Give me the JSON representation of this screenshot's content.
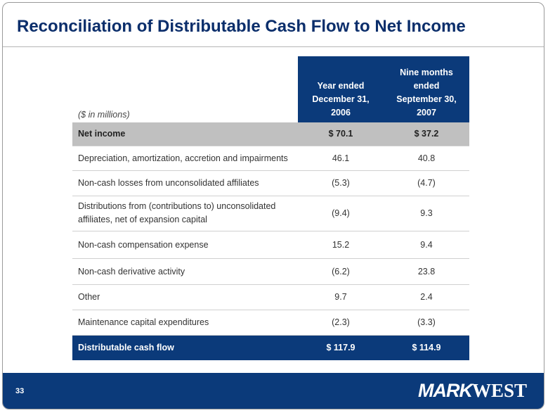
{
  "header": {
    "title": "Reconciliation of Distributable Cash Flow to Net Income"
  },
  "table": {
    "unit_note": "($ in millions)",
    "columns": [
      [
        "Year ended",
        "December 31,",
        "2006"
      ],
      [
        "Nine months",
        "ended",
        "September 30,",
        "2007"
      ]
    ],
    "rows": [
      [
        [
          "Net income"
        ],
        "$  70.1",
        "$  37.2"
      ],
      [
        [
          "Depreciation, amortization, accretion and impairments"
        ],
        "46.1",
        "40.8"
      ],
      [
        [
          "Non-cash losses from unconsolidated affiliates"
        ],
        "(5.3)",
        "(4.7)"
      ],
      [
        [
          "Distributions from (contributions to) unconsolidated",
          "affiliates, net of expansion capital"
        ],
        "(9.4)",
        "9.3"
      ],
      [
        [
          "Non-cash compensation expense"
        ],
        "15.2",
        "9.4"
      ],
      [
        [
          "Non-cash derivative activity"
        ],
        "(6.2)",
        "23.8"
      ],
      [
        [
          "Other"
        ],
        "9.7",
        "2.4"
      ],
      [
        [
          "Maintenance capital expenditures"
        ],
        "(2.3)",
        "(3.3)"
      ],
      [
        [
          "Distributable cash flow"
        ],
        "$   117.9",
        "$  114.9"
      ]
    ]
  },
  "footer": {
    "page_number": "33",
    "logo": [
      "MARK",
      "WEST"
    ]
  }
}
